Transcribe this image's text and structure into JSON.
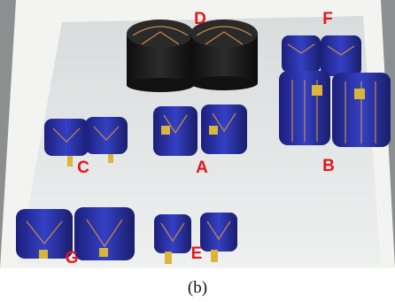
{
  "photo": {
    "labels": [
      "D",
      "F",
      "C",
      "A",
      "B",
      "G",
      "E"
    ]
  },
  "caption": "(b)"
}
